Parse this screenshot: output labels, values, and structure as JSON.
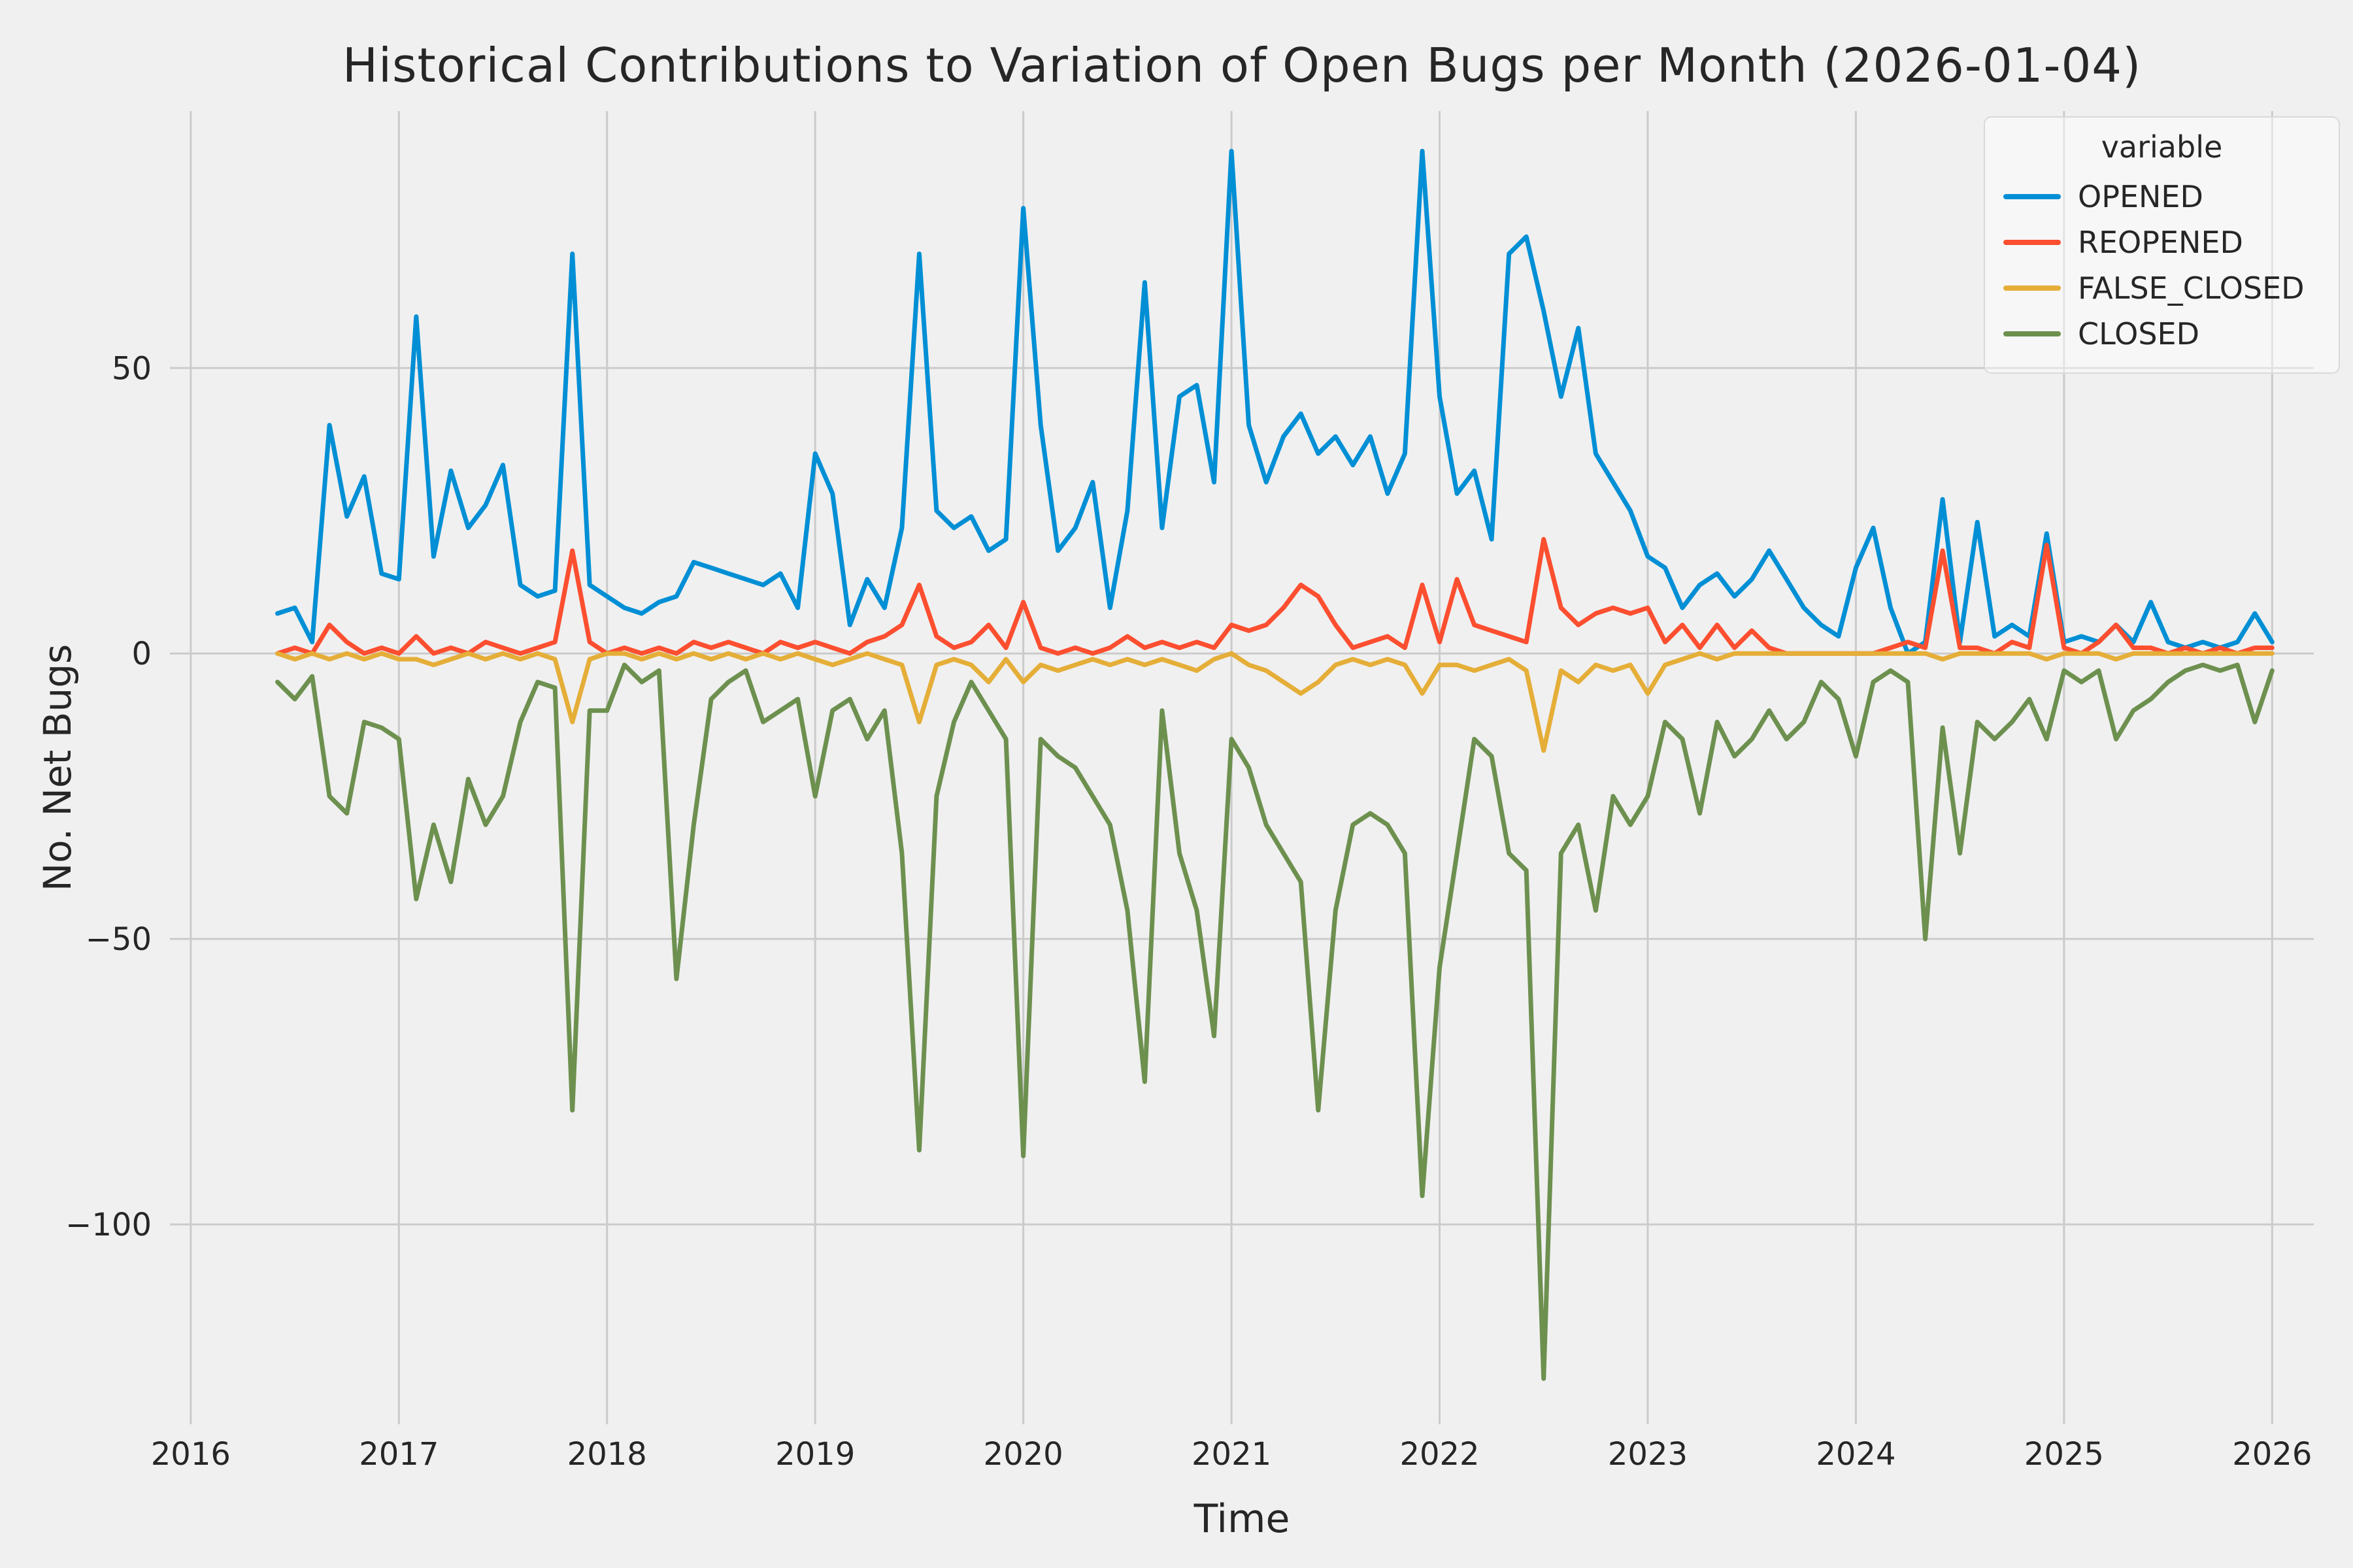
{
  "chart_data": {
    "type": "line",
    "title": "Historical Contributions to Variation of Open Bugs per Month (2026-01-04)",
    "xlabel": "Time",
    "ylabel": "No. Net Bugs",
    "legend_title": "variable",
    "legend_position": "upper right",
    "grid": true,
    "background_color": "#f0f0f0",
    "grid_color": "#cbcbcb",
    "text_color": "#262626",
    "xlim": [
      2015.9,
      2026.2
    ],
    "ylim": [
      -135,
      95
    ],
    "x_ticks": [
      2016,
      2017,
      2018,
      2019,
      2020,
      2021,
      2022,
      2023,
      2024,
      2025,
      2026
    ],
    "y_ticks": {
      "values": [
        50,
        0,
        -50,
        -100
      ],
      "labels": [
        "50",
        "0",
        "−50",
        "−100"
      ]
    },
    "months": [
      "2016-06",
      "2016-07",
      "2016-08",
      "2016-09",
      "2016-10",
      "2016-11",
      "2016-12",
      "2017-01",
      "2017-02",
      "2017-03",
      "2017-04",
      "2017-05",
      "2017-06",
      "2017-07",
      "2017-08",
      "2017-09",
      "2017-10",
      "2017-11",
      "2017-12",
      "2018-01",
      "2018-02",
      "2018-03",
      "2018-04",
      "2018-05",
      "2018-06",
      "2018-07",
      "2018-08",
      "2018-09",
      "2018-10",
      "2018-11",
      "2018-12",
      "2019-01",
      "2019-02",
      "2019-03",
      "2019-04",
      "2019-05",
      "2019-06",
      "2019-07",
      "2019-08",
      "2019-09",
      "2019-10",
      "2019-11",
      "2019-12",
      "2020-01",
      "2020-02",
      "2020-03",
      "2020-04",
      "2020-05",
      "2020-06",
      "2020-07",
      "2020-08",
      "2020-09",
      "2020-10",
      "2020-11",
      "2020-12",
      "2021-01",
      "2021-02",
      "2021-03",
      "2021-04",
      "2021-05",
      "2021-06",
      "2021-07",
      "2021-08",
      "2021-09",
      "2021-10",
      "2021-11",
      "2021-12",
      "2022-01",
      "2022-02",
      "2022-03",
      "2022-04",
      "2022-05",
      "2022-06",
      "2022-07",
      "2022-08",
      "2022-09",
      "2022-10",
      "2022-11",
      "2022-12",
      "2023-01",
      "2023-02",
      "2023-03",
      "2023-04",
      "2023-05",
      "2023-06",
      "2023-07",
      "2023-08",
      "2023-09",
      "2023-10",
      "2023-11",
      "2023-12",
      "2024-01",
      "2024-02",
      "2024-03",
      "2024-04",
      "2024-05",
      "2024-06",
      "2024-07",
      "2024-08",
      "2024-09",
      "2024-10",
      "2024-11",
      "2024-12",
      "2025-01",
      "2025-02",
      "2025-03",
      "2025-04",
      "2025-05",
      "2025-06",
      "2025-07",
      "2025-08",
      "2025-09",
      "2025-10",
      "2025-11",
      "2025-12",
      "2026-01"
    ],
    "series": [
      {
        "name": "OPENED",
        "color": "#008fd5",
        "values": [
          7,
          8,
          2,
          40,
          24,
          31,
          14,
          13,
          59,
          17,
          32,
          22,
          26,
          33,
          12,
          10,
          11,
          70,
          12,
          10,
          8,
          7,
          9,
          10,
          16,
          15,
          14,
          13,
          12,
          14,
          8,
          35,
          28,
          5,
          13,
          8,
          22,
          70,
          25,
          22,
          24,
          18,
          20,
          78,
          40,
          18,
          22,
          30,
          8,
          25,
          65,
          22,
          45,
          47,
          30,
          88,
          40,
          30,
          38,
          42,
          35,
          38,
          33,
          38,
          28,
          35,
          88,
          45,
          28,
          32,
          20,
          70,
          73,
          60,
          45,
          57,
          35,
          30,
          25,
          17,
          15,
          8,
          12,
          14,
          10,
          13,
          18,
          13,
          8,
          5,
          3,
          15,
          22,
          8,
          0,
          2,
          27,
          2,
          23,
          3,
          5,
          3,
          21,
          2,
          3,
          2,
          5,
          2,
          9,
          2,
          1,
          2,
          1,
          2,
          7,
          2
        ]
      },
      {
        "name": "REOPENED",
        "color": "#fc4f30",
        "values": [
          0,
          1,
          0,
          5,
          2,
          0,
          1,
          0,
          3,
          0,
          1,
          0,
          2,
          1,
          0,
          1,
          2,
          18,
          2,
          0,
          1,
          0,
          1,
          0,
          2,
          1,
          2,
          1,
          0,
          2,
          1,
          2,
          1,
          0,
          2,
          3,
          5,
          12,
          3,
          1,
          2,
          5,
          1,
          9,
          1,
          0,
          1,
          0,
          1,
          3,
          1,
          2,
          1,
          2,
          1,
          5,
          4,
          5,
          8,
          12,
          10,
          5,
          1,
          2,
          3,
          1,
          12,
          2,
          13,
          5,
          4,
          3,
          2,
          20,
          8,
          5,
          7,
          8,
          7,
          8,
          2,
          5,
          1,
          5,
          1,
          4,
          1,
          0,
          0,
          0,
          0,
          0,
          0,
          1,
          2,
          1,
          18,
          1,
          1,
          0,
          2,
          1,
          19,
          1,
          0,
          2,
          5,
          1,
          1,
          0,
          1,
          0,
          1,
          0,
          1,
          1
        ]
      },
      {
        "name": "FALSE_CLOSED",
        "color": "#e5ae38",
        "values": [
          0,
          -1,
          0,
          -1,
          0,
          -1,
          0,
          -1,
          -1,
          -2,
          -1,
          0,
          -1,
          0,
          -1,
          0,
          -1,
          -12,
          -1,
          0,
          0,
          -1,
          0,
          -1,
          0,
          -1,
          0,
          -1,
          0,
          -1,
          0,
          -1,
          -2,
          -1,
          0,
          -1,
          -2,
          -12,
          -2,
          -1,
          -2,
          -5,
          -1,
          -5,
          -2,
          -3,
          -2,
          -1,
          -2,
          -1,
          -2,
          -1,
          -2,
          -3,
          -1,
          0,
          -2,
          -3,
          -5,
          -7,
          -5,
          -2,
          -1,
          -2,
          -1,
          -2,
          -7,
          -2,
          -2,
          -3,
          -2,
          -1,
          -3,
          -17,
          -3,
          -5,
          -2,
          -3,
          -2,
          -7,
          -2,
          -1,
          0,
          -1,
          0,
          0,
          0,
          0,
          0,
          0,
          0,
          0,
          0,
          0,
          0,
          0,
          -1,
          0,
          0,
          0,
          0,
          0,
          -1,
          0,
          0,
          0,
          -1,
          0,
          0,
          0,
          0,
          0,
          0,
          0,
          0,
          0
        ]
      },
      {
        "name": "CLOSED",
        "color": "#6d904f",
        "values": [
          -5,
          -8,
          -4,
          -25,
          -28,
          -12,
          -13,
          -15,
          -43,
          -30,
          -40,
          -22,
          -30,
          -25,
          -12,
          -5,
          -6,
          -80,
          -10,
          -10,
          -2,
          -5,
          -3,
          -57,
          -30,
          -8,
          -5,
          -3,
          -12,
          -10,
          -8,
          -25,
          -10,
          -8,
          -15,
          -10,
          -35,
          -87,
          -25,
          -12,
          -5,
          -10,
          -15,
          -88,
          -15,
          -18,
          -20,
          -25,
          -30,
          -45,
          -75,
          -10,
          -35,
          -45,
          -67,
          -15,
          -20,
          -30,
          -35,
          -40,
          -80,
          -45,
          -30,
          -28,
          -30,
          -35,
          -95,
          -55,
          -35,
          -15,
          -18,
          -35,
          -38,
          -127,
          -35,
          -30,
          -45,
          -25,
          -30,
          -25,
          -12,
          -15,
          -28,
          -12,
          -18,
          -15,
          -10,
          -15,
          -12,
          -5,
          -8,
          -18,
          -5,
          -3,
          -5,
          -50,
          -13,
          -35,
          -12,
          -15,
          -12,
          -8,
          -15,
          -3,
          -5,
          -3,
          -15,
          -10,
          -8,
          -5,
          -3,
          -2,
          -3,
          -2,
          -12,
          -3
        ]
      }
    ]
  }
}
